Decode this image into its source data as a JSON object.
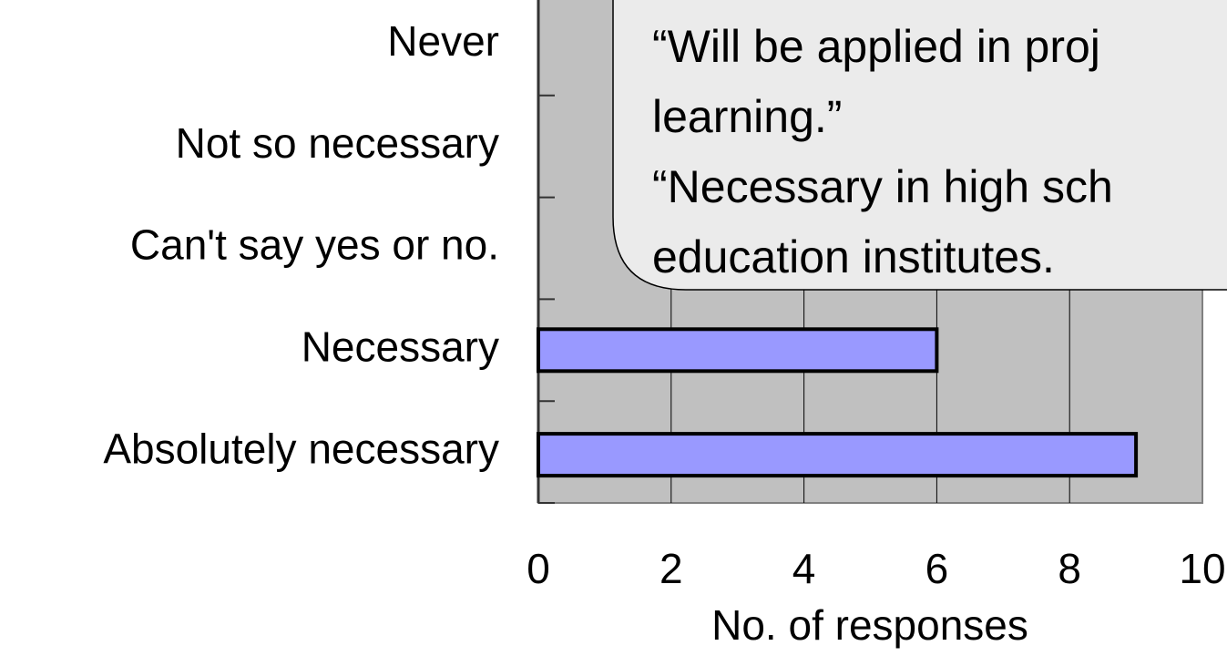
{
  "chart_data": {
    "type": "barh",
    "categories": [
      "Never",
      "Not so necessary",
      "Can't say yes or no.",
      "Necessary",
      "Absolutely necessary"
    ],
    "values": [
      0,
      0,
      0,
      6,
      9
    ],
    "color": "#9999ff",
    "xlim": [
      0,
      10
    ],
    "xticks": [
      0,
      2,
      4,
      6,
      8,
      10
    ],
    "grid": true,
    "xlabel": "No. of responses",
    "annotation": [
      "“Will be applied in proj",
      "learning.”",
      "“Necessary in high sch",
      "education institutes."
    ]
  }
}
